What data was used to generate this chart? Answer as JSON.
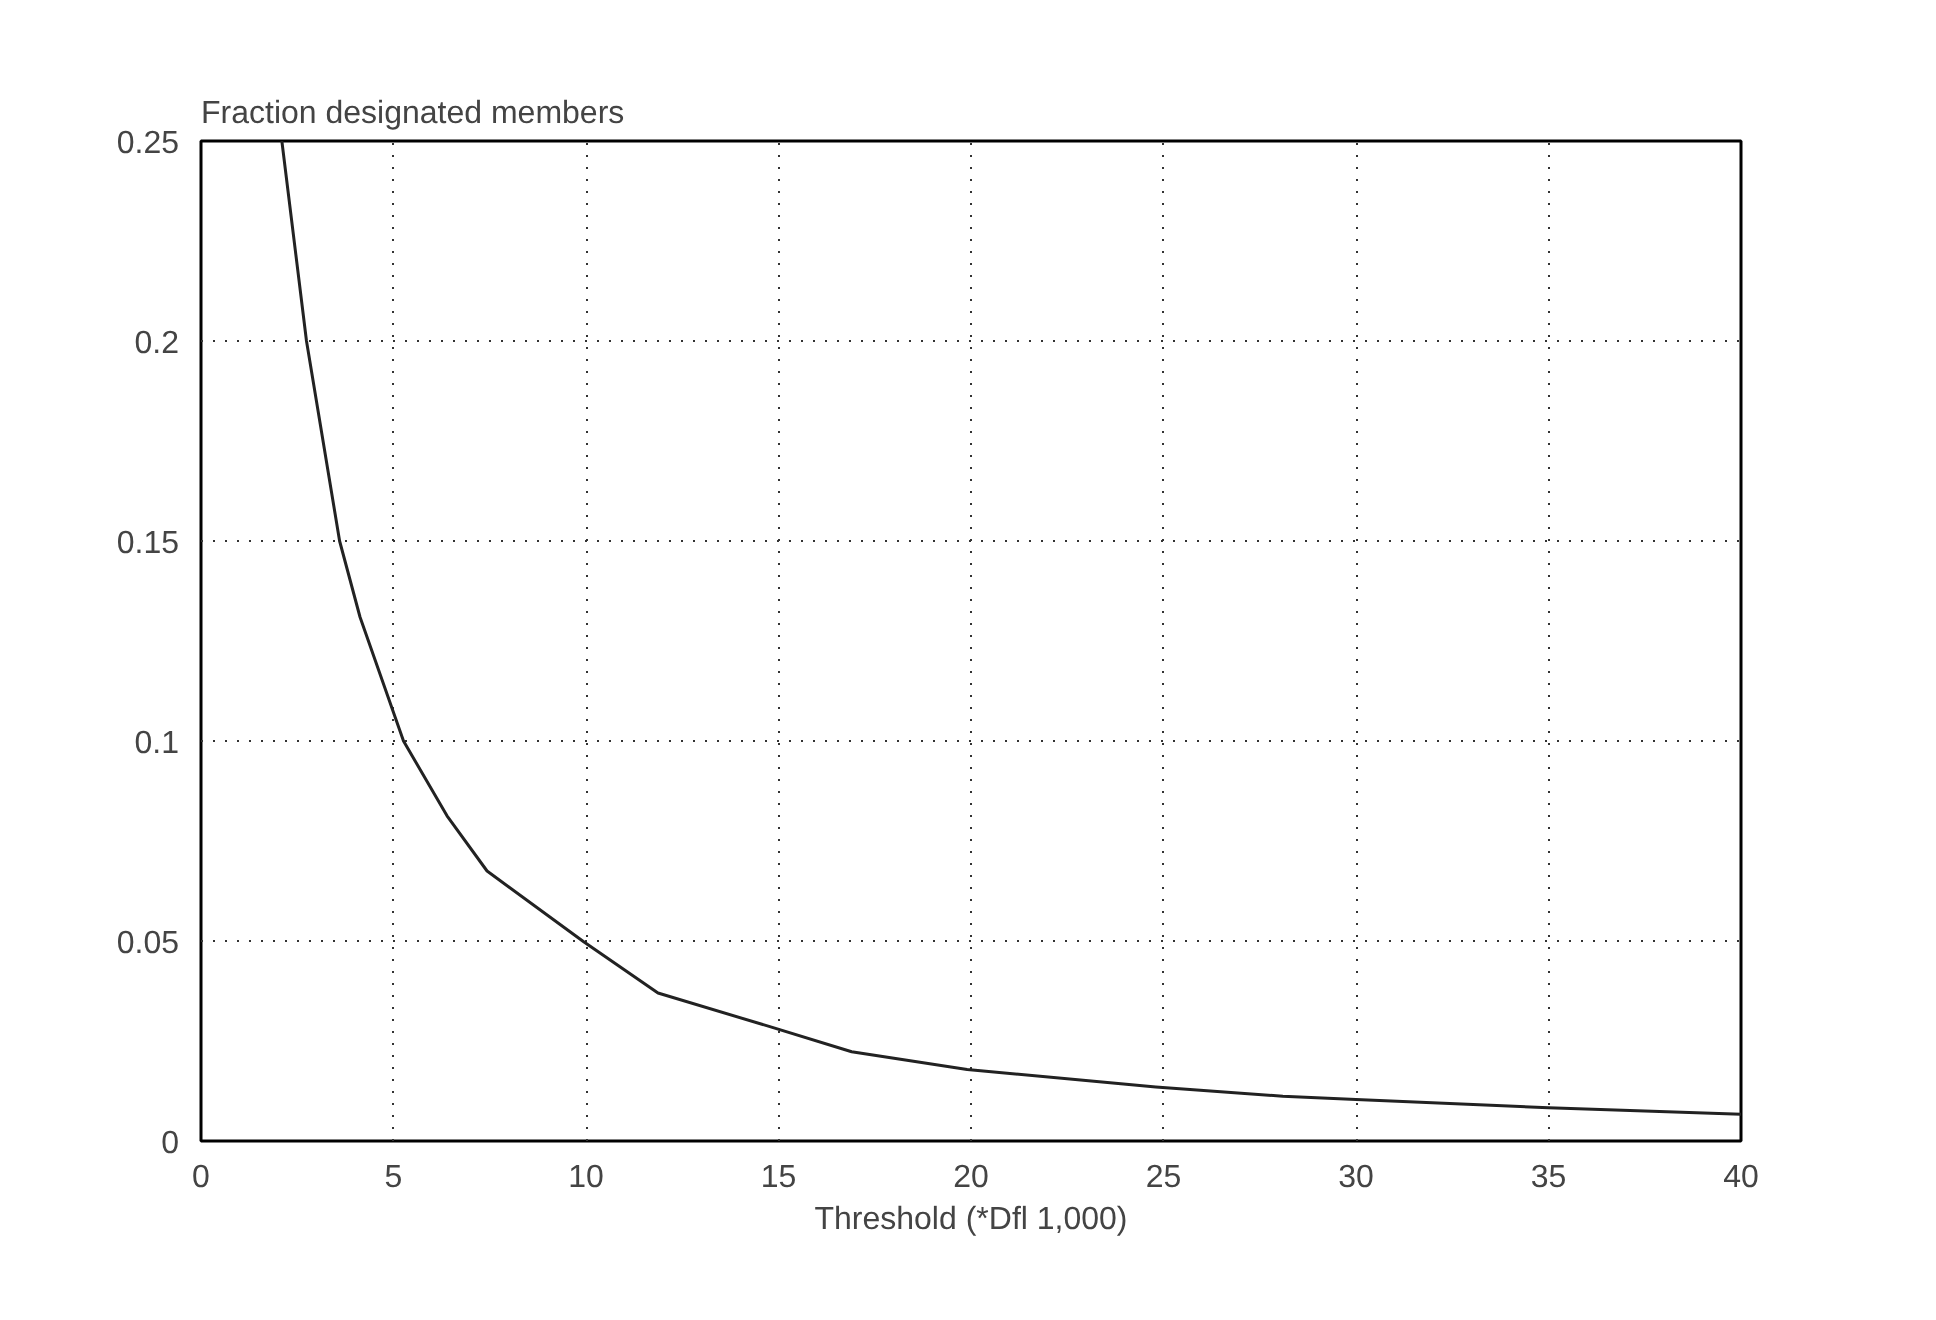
{
  "chart_data": {
    "type": "line",
    "ylabel": "Fraction designated members",
    "xlabel": "Threshold (*Dfl 1,000)",
    "x": [
      2.1,
      2.74,
      3.6,
      4.13,
      5.26,
      6.39,
      7.43,
      9.94,
      11.87,
      14.84,
      16.9,
      19.9,
      24.8,
      28.1,
      30,
      35,
      40
    ],
    "series": [
      {
        "color": "#222222",
        "values": [
          0.25,
          0.2,
          0.15,
          0.131,
          0.1,
          0.0813,
          0.0675,
          0.0498,
          0.037,
          0.0284,
          0.0223,
          0.0179,
          0.0135,
          0.0112,
          0.0104,
          0.0083,
          0.0067
        ]
      }
    ],
    "xlim": [
      0,
      40
    ],
    "ylim": [
      0,
      0.25
    ],
    "xticks": [
      0,
      5,
      10,
      15,
      20,
      25,
      30,
      35,
      40
    ],
    "yticks": [
      0,
      0.05,
      0.1,
      0.15,
      0.2,
      0.25
    ],
    "grid": true,
    "line_style": "solid",
    "marker": "none"
  }
}
